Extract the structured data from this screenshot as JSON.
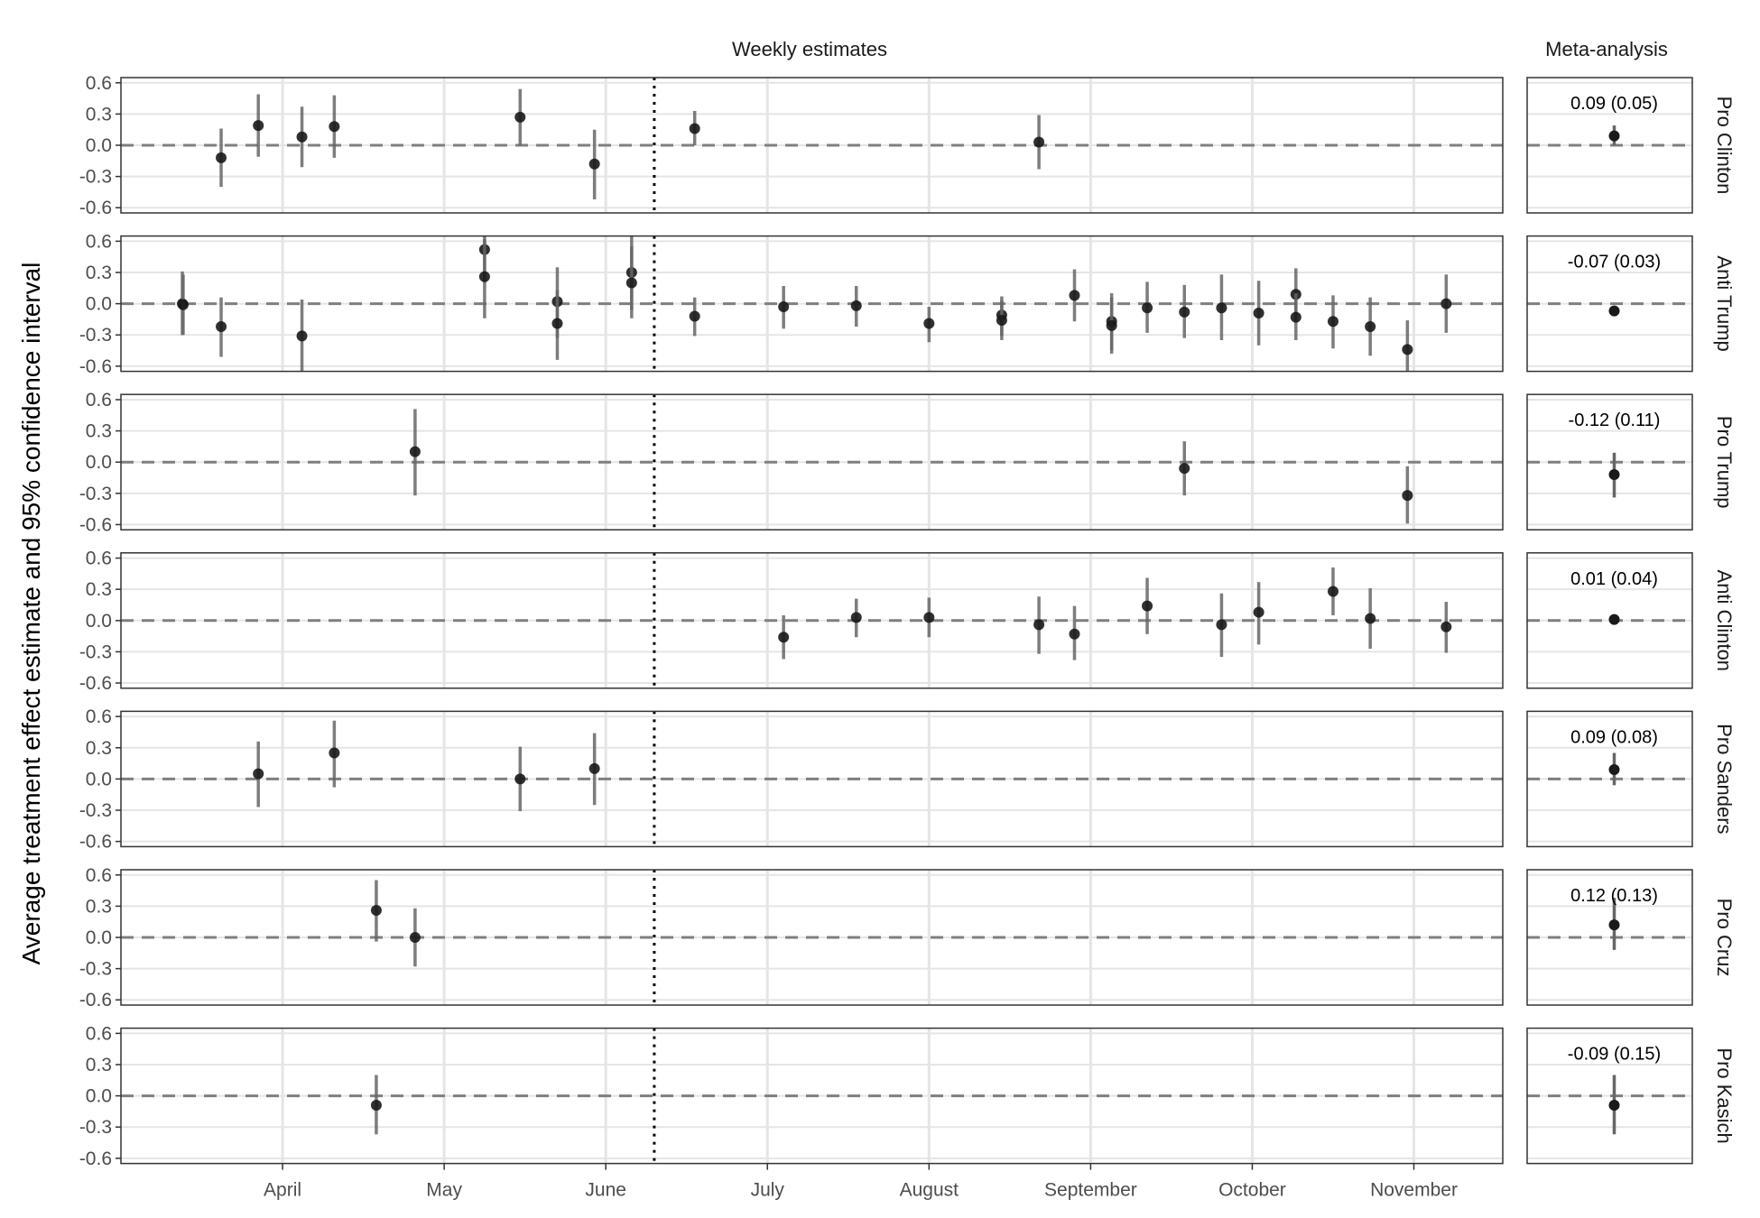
{
  "chart_data": {
    "type": "scatter",
    "ylabel": "Average treatment effect estimate and 95% confidence interval",
    "column_strips": [
      "Weekly estimates",
      "Meta-analysis"
    ],
    "x_tick_labels": [
      "April",
      "May",
      "June",
      "July",
      "August",
      "September",
      "October",
      "November"
    ],
    "y_tick_labels": [
      "0.6",
      "0.3",
      "0.0",
      "-0.3",
      "-0.6"
    ],
    "ylim": [
      -0.65,
      0.65
    ],
    "y_ticks": [
      0.6,
      0.3,
      0.0,
      -0.3,
      -0.6
    ],
    "x_ticks_month_index": [
      3,
      4,
      5,
      6,
      7,
      8,
      9,
      10
    ],
    "xlim_month_index": [
      2.0,
      10.55
    ],
    "cutoff_month_index": 5.3,
    "reference_line": 0,
    "grid": true,
    "panels": [
      {
        "name": "Pro Clinton",
        "meta": {
          "estimate": 0.09,
          "label": "0.09 (0.05)",
          "ci": [
            0.0,
            0.19
          ]
        },
        "points": [
          {
            "x": 2.62,
            "y": -0.12,
            "lo": -0.4,
            "hi": 0.16
          },
          {
            "x": 2.85,
            "y": 0.19,
            "lo": -0.11,
            "hi": 0.49
          },
          {
            "x": 3.12,
            "y": 0.08,
            "lo": -0.21,
            "hi": 0.37
          },
          {
            "x": 3.32,
            "y": 0.18,
            "lo": -0.12,
            "hi": 0.48
          },
          {
            "x": 4.47,
            "y": 0.27,
            "lo": 0.0,
            "hi": 0.54
          },
          {
            "x": 4.93,
            "y": -0.18,
            "lo": -0.52,
            "hi": 0.15
          },
          {
            "x": 5.55,
            "y": 0.16,
            "lo": 0.0,
            "hi": 0.33
          },
          {
            "x": 7.68,
            "y": 0.03,
            "lo": -0.23,
            "hi": 0.29
          }
        ]
      },
      {
        "name": "Anti Trump",
        "meta": {
          "estimate": -0.07,
          "label": "-0.07 (0.03)",
          "ci": [
            -0.11,
            -0.03
          ]
        },
        "points": [
          {
            "x": 2.38,
            "y": 0.0,
            "lo": -0.3,
            "hi": 0.31
          },
          {
            "x": 2.385,
            "y": -0.01,
            "lo": -0.3,
            "hi": 0.28
          },
          {
            "x": 2.62,
            "y": -0.22,
            "lo": -0.51,
            "hi": 0.06
          },
          {
            "x": 3.12,
            "y": -0.31,
            "lo": -0.65,
            "hi": 0.04
          },
          {
            "x": 4.25,
            "y": 0.52,
            "lo": 0.2,
            "hi": 0.65
          },
          {
            "x": 4.25,
            "y": 0.26,
            "lo": -0.14,
            "hi": 0.62
          },
          {
            "x": 4.7,
            "y": 0.02,
            "lo": -0.33,
            "hi": 0.35
          },
          {
            "x": 4.7,
            "y": -0.19,
            "lo": -0.54,
            "hi": 0.13
          },
          {
            "x": 5.16,
            "y": 0.3,
            "lo": -0.06,
            "hi": 0.65
          },
          {
            "x": 5.16,
            "y": 0.2,
            "lo": -0.14,
            "hi": 0.55
          },
          {
            "x": 5.55,
            "y": -0.12,
            "lo": -0.31,
            "hi": 0.06
          },
          {
            "x": 6.1,
            "y": -0.03,
            "lo": -0.24,
            "hi": 0.17
          },
          {
            "x": 6.55,
            "y": -0.02,
            "lo": -0.22,
            "hi": 0.17
          },
          {
            "x": 7.0,
            "y": -0.19,
            "lo": -0.37,
            "hi": -0.03
          },
          {
            "x": 7.45,
            "y": -0.11,
            "lo": -0.31,
            "hi": 0.07
          },
          {
            "x": 7.45,
            "y": -0.16,
            "lo": -0.35,
            "hi": 0.03
          },
          {
            "x": 7.9,
            "y": 0.08,
            "lo": -0.17,
            "hi": 0.33
          },
          {
            "x": 8.13,
            "y": -0.17,
            "lo": -0.48,
            "hi": 0.1
          },
          {
            "x": 8.13,
            "y": -0.21,
            "lo": -0.45,
            "hi": 0.06
          },
          {
            "x": 8.35,
            "y": -0.04,
            "lo": -0.28,
            "hi": 0.21
          },
          {
            "x": 8.58,
            "y": -0.08,
            "lo": -0.33,
            "hi": 0.18
          },
          {
            "x": 8.81,
            "y": -0.04,
            "lo": -0.35,
            "hi": 0.28
          },
          {
            "x": 9.04,
            "y": -0.09,
            "lo": -0.4,
            "hi": 0.22
          },
          {
            "x": 9.27,
            "y": 0.09,
            "lo": -0.17,
            "hi": 0.34
          },
          {
            "x": 9.27,
            "y": -0.13,
            "lo": -0.35,
            "hi": 0.1
          },
          {
            "x": 9.5,
            "y": -0.17,
            "lo": -0.43,
            "hi": 0.08
          },
          {
            "x": 9.73,
            "y": -0.22,
            "lo": -0.5,
            "hi": 0.06
          },
          {
            "x": 9.96,
            "y": -0.44,
            "lo": -0.65,
            "hi": -0.16
          },
          {
            "x": 10.2,
            "y": 0.0,
            "lo": -0.28,
            "hi": 0.28
          }
        ]
      },
      {
        "name": "Pro Trump",
        "meta": {
          "estimate": -0.12,
          "label": "-0.12 (0.11)",
          "ci": [
            -0.34,
            0.09
          ]
        },
        "points": [
          {
            "x": 3.82,
            "y": 0.1,
            "lo": -0.32,
            "hi": 0.51
          },
          {
            "x": 8.58,
            "y": -0.06,
            "lo": -0.32,
            "hi": 0.2
          },
          {
            "x": 9.96,
            "y": -0.32,
            "lo": -0.59,
            "hi": -0.04
          }
        ]
      },
      {
        "name": "Anti Clinton",
        "meta": {
          "estimate": 0.01,
          "label": "0.01 (0.04)",
          "ci": [
            -0.03,
            0.05
          ]
        },
        "points": [
          {
            "x": 6.1,
            "y": -0.16,
            "lo": -0.37,
            "hi": 0.05
          },
          {
            "x": 6.55,
            "y": 0.03,
            "lo": -0.16,
            "hi": 0.21
          },
          {
            "x": 7.0,
            "y": 0.03,
            "lo": -0.16,
            "hi": 0.22
          },
          {
            "x": 7.68,
            "y": -0.04,
            "lo": -0.32,
            "hi": 0.23
          },
          {
            "x": 7.9,
            "y": -0.13,
            "lo": -0.38,
            "hi": 0.14
          },
          {
            "x": 8.35,
            "y": 0.14,
            "lo": -0.13,
            "hi": 0.41
          },
          {
            "x": 8.81,
            "y": -0.04,
            "lo": -0.35,
            "hi": 0.26
          },
          {
            "x": 9.04,
            "y": 0.08,
            "lo": -0.23,
            "hi": 0.37
          },
          {
            "x": 9.5,
            "y": 0.28,
            "lo": 0.05,
            "hi": 0.51
          },
          {
            "x": 9.73,
            "y": 0.02,
            "lo": -0.27,
            "hi": 0.31
          },
          {
            "x": 10.2,
            "y": -0.06,
            "lo": -0.31,
            "hi": 0.18
          }
        ]
      },
      {
        "name": "Pro Sanders",
        "meta": {
          "estimate": 0.09,
          "label": "0.09 (0.08)",
          "ci": [
            -0.06,
            0.25
          ]
        },
        "points": [
          {
            "x": 2.85,
            "y": 0.05,
            "lo": -0.27,
            "hi": 0.36
          },
          {
            "x": 3.32,
            "y": 0.25,
            "lo": -0.08,
            "hi": 0.56
          },
          {
            "x": 4.47,
            "y": 0.0,
            "lo": -0.31,
            "hi": 0.31
          },
          {
            "x": 4.93,
            "y": 0.1,
            "lo": -0.25,
            "hi": 0.44
          }
        ]
      },
      {
        "name": "Pro Cruz",
        "meta": {
          "estimate": 0.12,
          "label": "0.12 (0.13)",
          "ci": [
            -0.12,
            0.38
          ]
        },
        "points": [
          {
            "x": 3.58,
            "y": 0.26,
            "lo": -0.04,
            "hi": 0.55
          },
          {
            "x": 3.82,
            "y": 0.0,
            "lo": -0.28,
            "hi": 0.28
          }
        ]
      },
      {
        "name": "Pro Kasich",
        "meta": {
          "estimate": -0.09,
          "label": "-0.09 (0.15)",
          "ci": [
            -0.37,
            0.2
          ]
        },
        "points": [
          {
            "x": 3.58,
            "y": -0.09,
            "lo": -0.37,
            "hi": 0.2
          }
        ]
      }
    ],
    "colors": {
      "point": "#1a1a1a",
      "errorbar": "#666666",
      "gridline": "#e5e5e5",
      "reference": "#7f7f7f",
      "panel_border": "#333333"
    }
  }
}
